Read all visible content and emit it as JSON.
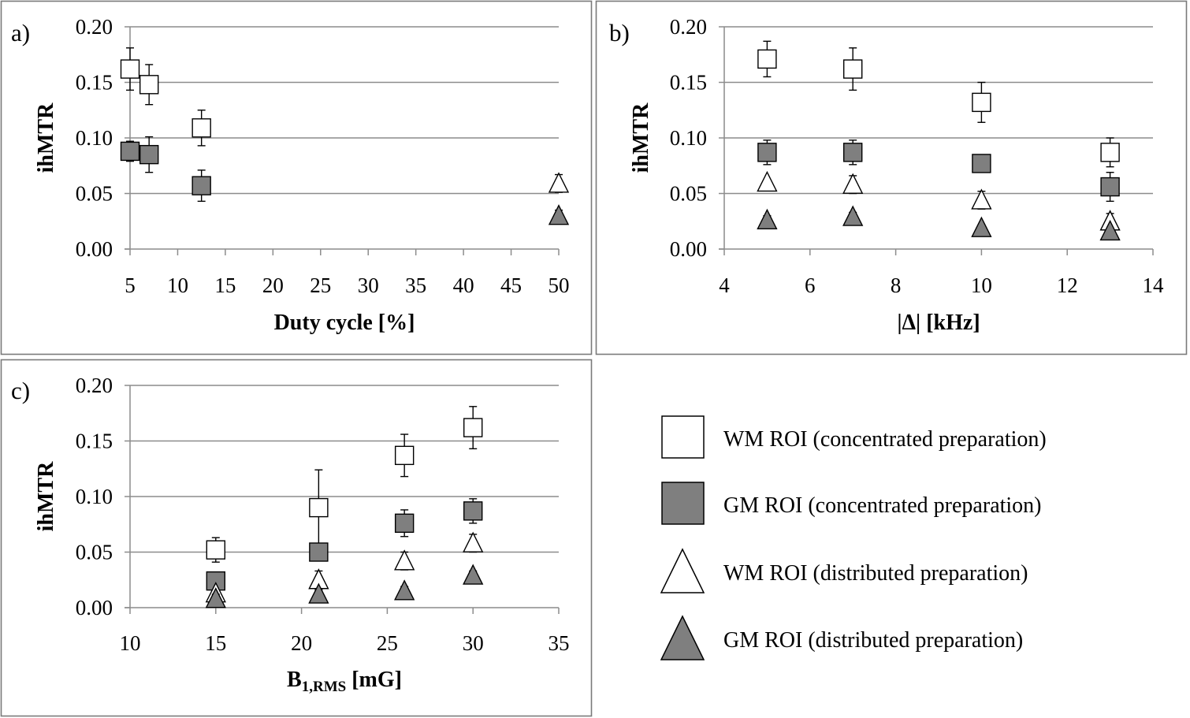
{
  "colors": {
    "white_fill": "#ffffff",
    "gray_fill": "#7f7f7f",
    "stroke": "#000000",
    "grid": "#8c8c8c",
    "frame": "#7a7a7a"
  },
  "series_styles": [
    {
      "key": "wm_conc",
      "marker": "square",
      "fill": "#ffffff"
    },
    {
      "key": "gm_conc",
      "marker": "square",
      "fill": "#7f7f7f"
    },
    {
      "key": "wm_dist",
      "marker": "triangle",
      "fill": "#ffffff"
    },
    {
      "key": "gm_dist",
      "marker": "triangle",
      "fill": "#7f7f7f"
    }
  ],
  "legend": {
    "items": [
      {
        "label": "WM ROI (concentrated preparation)",
        "marker": "square",
        "fill": "#ffffff"
      },
      {
        "label": "GM ROI (concentrated preparation)",
        "marker": "square",
        "fill": "#7f7f7f"
      },
      {
        "label": "WM ROI (distributed preparation)",
        "marker": "triangle",
        "fill": "#ffffff"
      },
      {
        "label": "GM ROI (distributed preparation)",
        "marker": "triangle",
        "fill": "#7f7f7f"
      }
    ]
  },
  "chart_data": [
    {
      "panel": "a)",
      "type": "scatter",
      "xlabel": "Duty cycle [%]",
      "xlabel_sub": "",
      "xlabel_after": "",
      "ylabel": "ihMTR",
      "xlim": [
        5,
        50
      ],
      "ylim": [
        0,
        0.2
      ],
      "xticks": [
        "5",
        "10",
        "15",
        "20",
        "25",
        "30",
        "35",
        "40",
        "45",
        "50"
      ],
      "xtick_values": [
        5,
        10,
        15,
        20,
        25,
        30,
        35,
        40,
        45,
        50
      ],
      "yticks": [
        "0.00",
        "0.05",
        "0.10",
        "0.15",
        "0.20"
      ],
      "ytick_values": [
        0,
        0.05,
        0.1,
        0.15,
        0.2
      ],
      "grid": "horizontal",
      "series": [
        {
          "name": "WM ROI (concentrated preparation)",
          "key": "wm_conc",
          "x": [
            5,
            7,
            12.5
          ],
          "y": [
            0.162,
            0.148,
            0.109
          ],
          "err": [
            0.019,
            0.018,
            0.016
          ]
        },
        {
          "name": "GM ROI (concentrated preparation)",
          "key": "gm_conc",
          "x": [
            5,
            7,
            12.5
          ],
          "y": [
            0.088,
            0.085,
            0.057
          ],
          "err": [
            0.009,
            0.016,
            0.014
          ]
        },
        {
          "name": "WM ROI (distributed preparation)",
          "key": "wm_dist",
          "x": [
            50
          ],
          "y": [
            0.059
          ],
          "err": [
            0.008
          ]
        },
        {
          "name": "GM ROI (distributed preparation)",
          "key": "gm_dist",
          "x": [
            50
          ],
          "y": [
            0.03
          ],
          "err": [
            0.005
          ]
        }
      ]
    },
    {
      "panel": "b)",
      "type": "scatter",
      "xlabel": "|Δ| [kHz]",
      "xlabel_sub": "",
      "xlabel_after": "",
      "ylabel": "ihMTR",
      "xlim": [
        4,
        14
      ],
      "ylim": [
        0,
        0.2
      ],
      "xticks": [
        "4",
        "6",
        "8",
        "10",
        "12",
        "14"
      ],
      "xtick_values": [
        4,
        6,
        8,
        10,
        12,
        14
      ],
      "yticks": [
        "0.00",
        "0.05",
        "0.10",
        "0.15",
        "0.20"
      ],
      "ytick_values": [
        0,
        0.05,
        0.1,
        0.15,
        0.2
      ],
      "grid": "horizontal",
      "series": [
        {
          "name": "WM ROI (concentrated preparation)",
          "key": "wm_conc",
          "x": [
            5,
            7,
            10,
            13
          ],
          "y": [
            0.171,
            0.162,
            0.132,
            0.087
          ],
          "err": [
            0.016,
            0.019,
            0.018,
            0.013
          ]
        },
        {
          "name": "GM ROI (concentrated preparation)",
          "key": "gm_conc",
          "x": [
            5,
            7,
            10,
            13
          ],
          "y": [
            0.087,
            0.087,
            0.077,
            0.056
          ],
          "err": [
            0.011,
            0.011,
            0.0,
            0.013
          ]
        },
        {
          "name": "WM ROI (distributed preparation)",
          "key": "wm_dist",
          "x": [
            5,
            7,
            10,
            13
          ],
          "y": [
            0.06,
            0.058,
            0.044,
            0.025
          ],
          "err": [
            0.0,
            0.008,
            0.008,
            0.007
          ]
        },
        {
          "name": "GM ROI (distributed preparation)",
          "key": "gm_dist",
          "x": [
            5,
            7,
            10,
            13
          ],
          "y": [
            0.026,
            0.029,
            0.019,
            0.016
          ],
          "err": [
            0.004,
            0.004,
            0.0,
            0.0
          ]
        }
      ]
    },
    {
      "panel": "c)",
      "type": "scatter",
      "xlabel": "B",
      "xlabel_sub": "1,RMS",
      "xlabel_after": " [mG]",
      "ylabel": "ihMTR",
      "xlim": [
        10,
        35
      ],
      "ylim": [
        0,
        0.2
      ],
      "xticks": [
        "10",
        "15",
        "20",
        "25",
        "30",
        "35"
      ],
      "xtick_values": [
        10,
        15,
        20,
        25,
        30,
        35
      ],
      "yticks": [
        "0.00",
        "0.05",
        "0.10",
        "0.15",
        "0.20"
      ],
      "ytick_values": [
        0,
        0.05,
        0.1,
        0.15,
        0.2
      ],
      "grid": "horizontal",
      "series": [
        {
          "name": "WM ROI (concentrated preparation)",
          "key": "wm_conc",
          "x": [
            15,
            21,
            26,
            30
          ],
          "y": [
            0.052,
            0.09,
            0.137,
            0.162
          ],
          "err": [
            0.011,
            0.034,
            0.019,
            0.019
          ]
        },
        {
          "name": "GM ROI (concentrated preparation)",
          "key": "gm_conc",
          "x": [
            15,
            21,
            26,
            30
          ],
          "y": [
            0.024,
            0.05,
            0.076,
            0.087
          ],
          "err": [
            0.0,
            0.0,
            0.012,
            0.011
          ]
        },
        {
          "name": "WM ROI (distributed preparation)",
          "key": "wm_dist",
          "x": [
            15,
            21,
            26,
            30
          ],
          "y": [
            0.013,
            0.025,
            0.042,
            0.058
          ],
          "err": [
            0.0,
            0.008,
            0.008,
            0.008
          ]
        },
        {
          "name": "GM ROI (distributed preparation)",
          "key": "gm_dist",
          "x": [
            15,
            21,
            26,
            30
          ],
          "y": [
            0.008,
            0.012,
            0.015,
            0.029
          ],
          "err": [
            0.004,
            0.004,
            0.004,
            0.004
          ]
        }
      ]
    }
  ]
}
